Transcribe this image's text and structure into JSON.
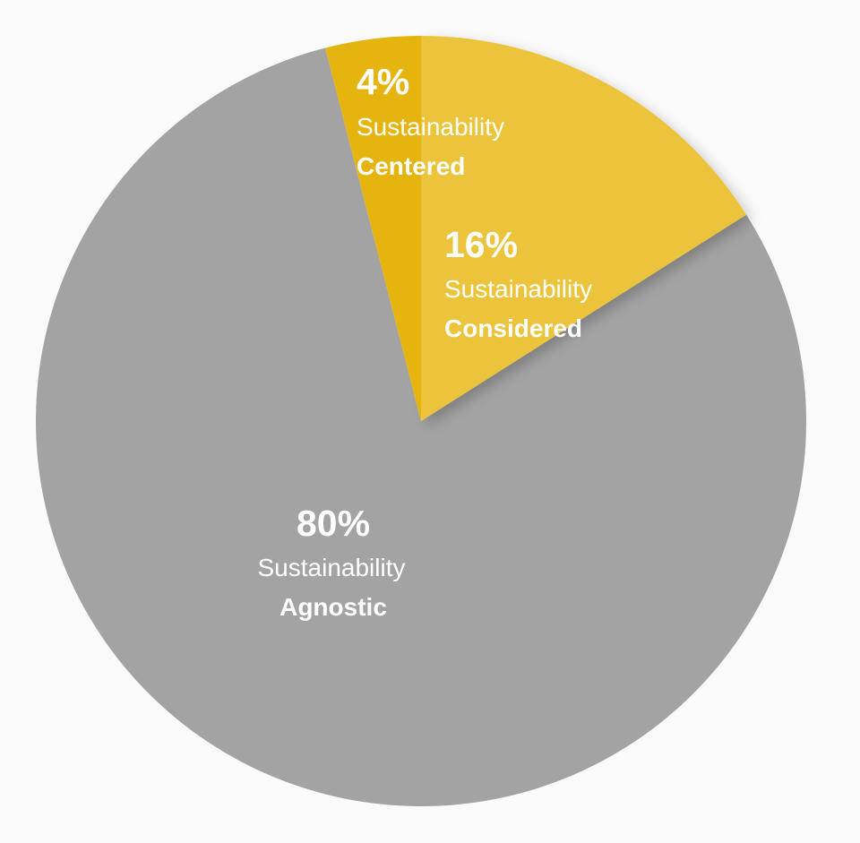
{
  "chart_data": {
    "type": "pie",
    "slices": [
      {
        "label": "Agnostic",
        "prefix": "Sustainability",
        "value": 80,
        "value_label": "80%",
        "color": "#a3a3a3"
      },
      {
        "label": "Centered",
        "prefix": "Sustainability",
        "value": 4,
        "value_label": "4%",
        "color": "#e6b40f"
      },
      {
        "label": "Considered",
        "prefix": "Sustainability",
        "value": 16,
        "value_label": "16%",
        "color": "#ebc43a"
      }
    ],
    "start_angle_deg": 0,
    "direction": "clockwise",
    "legend": "none"
  }
}
